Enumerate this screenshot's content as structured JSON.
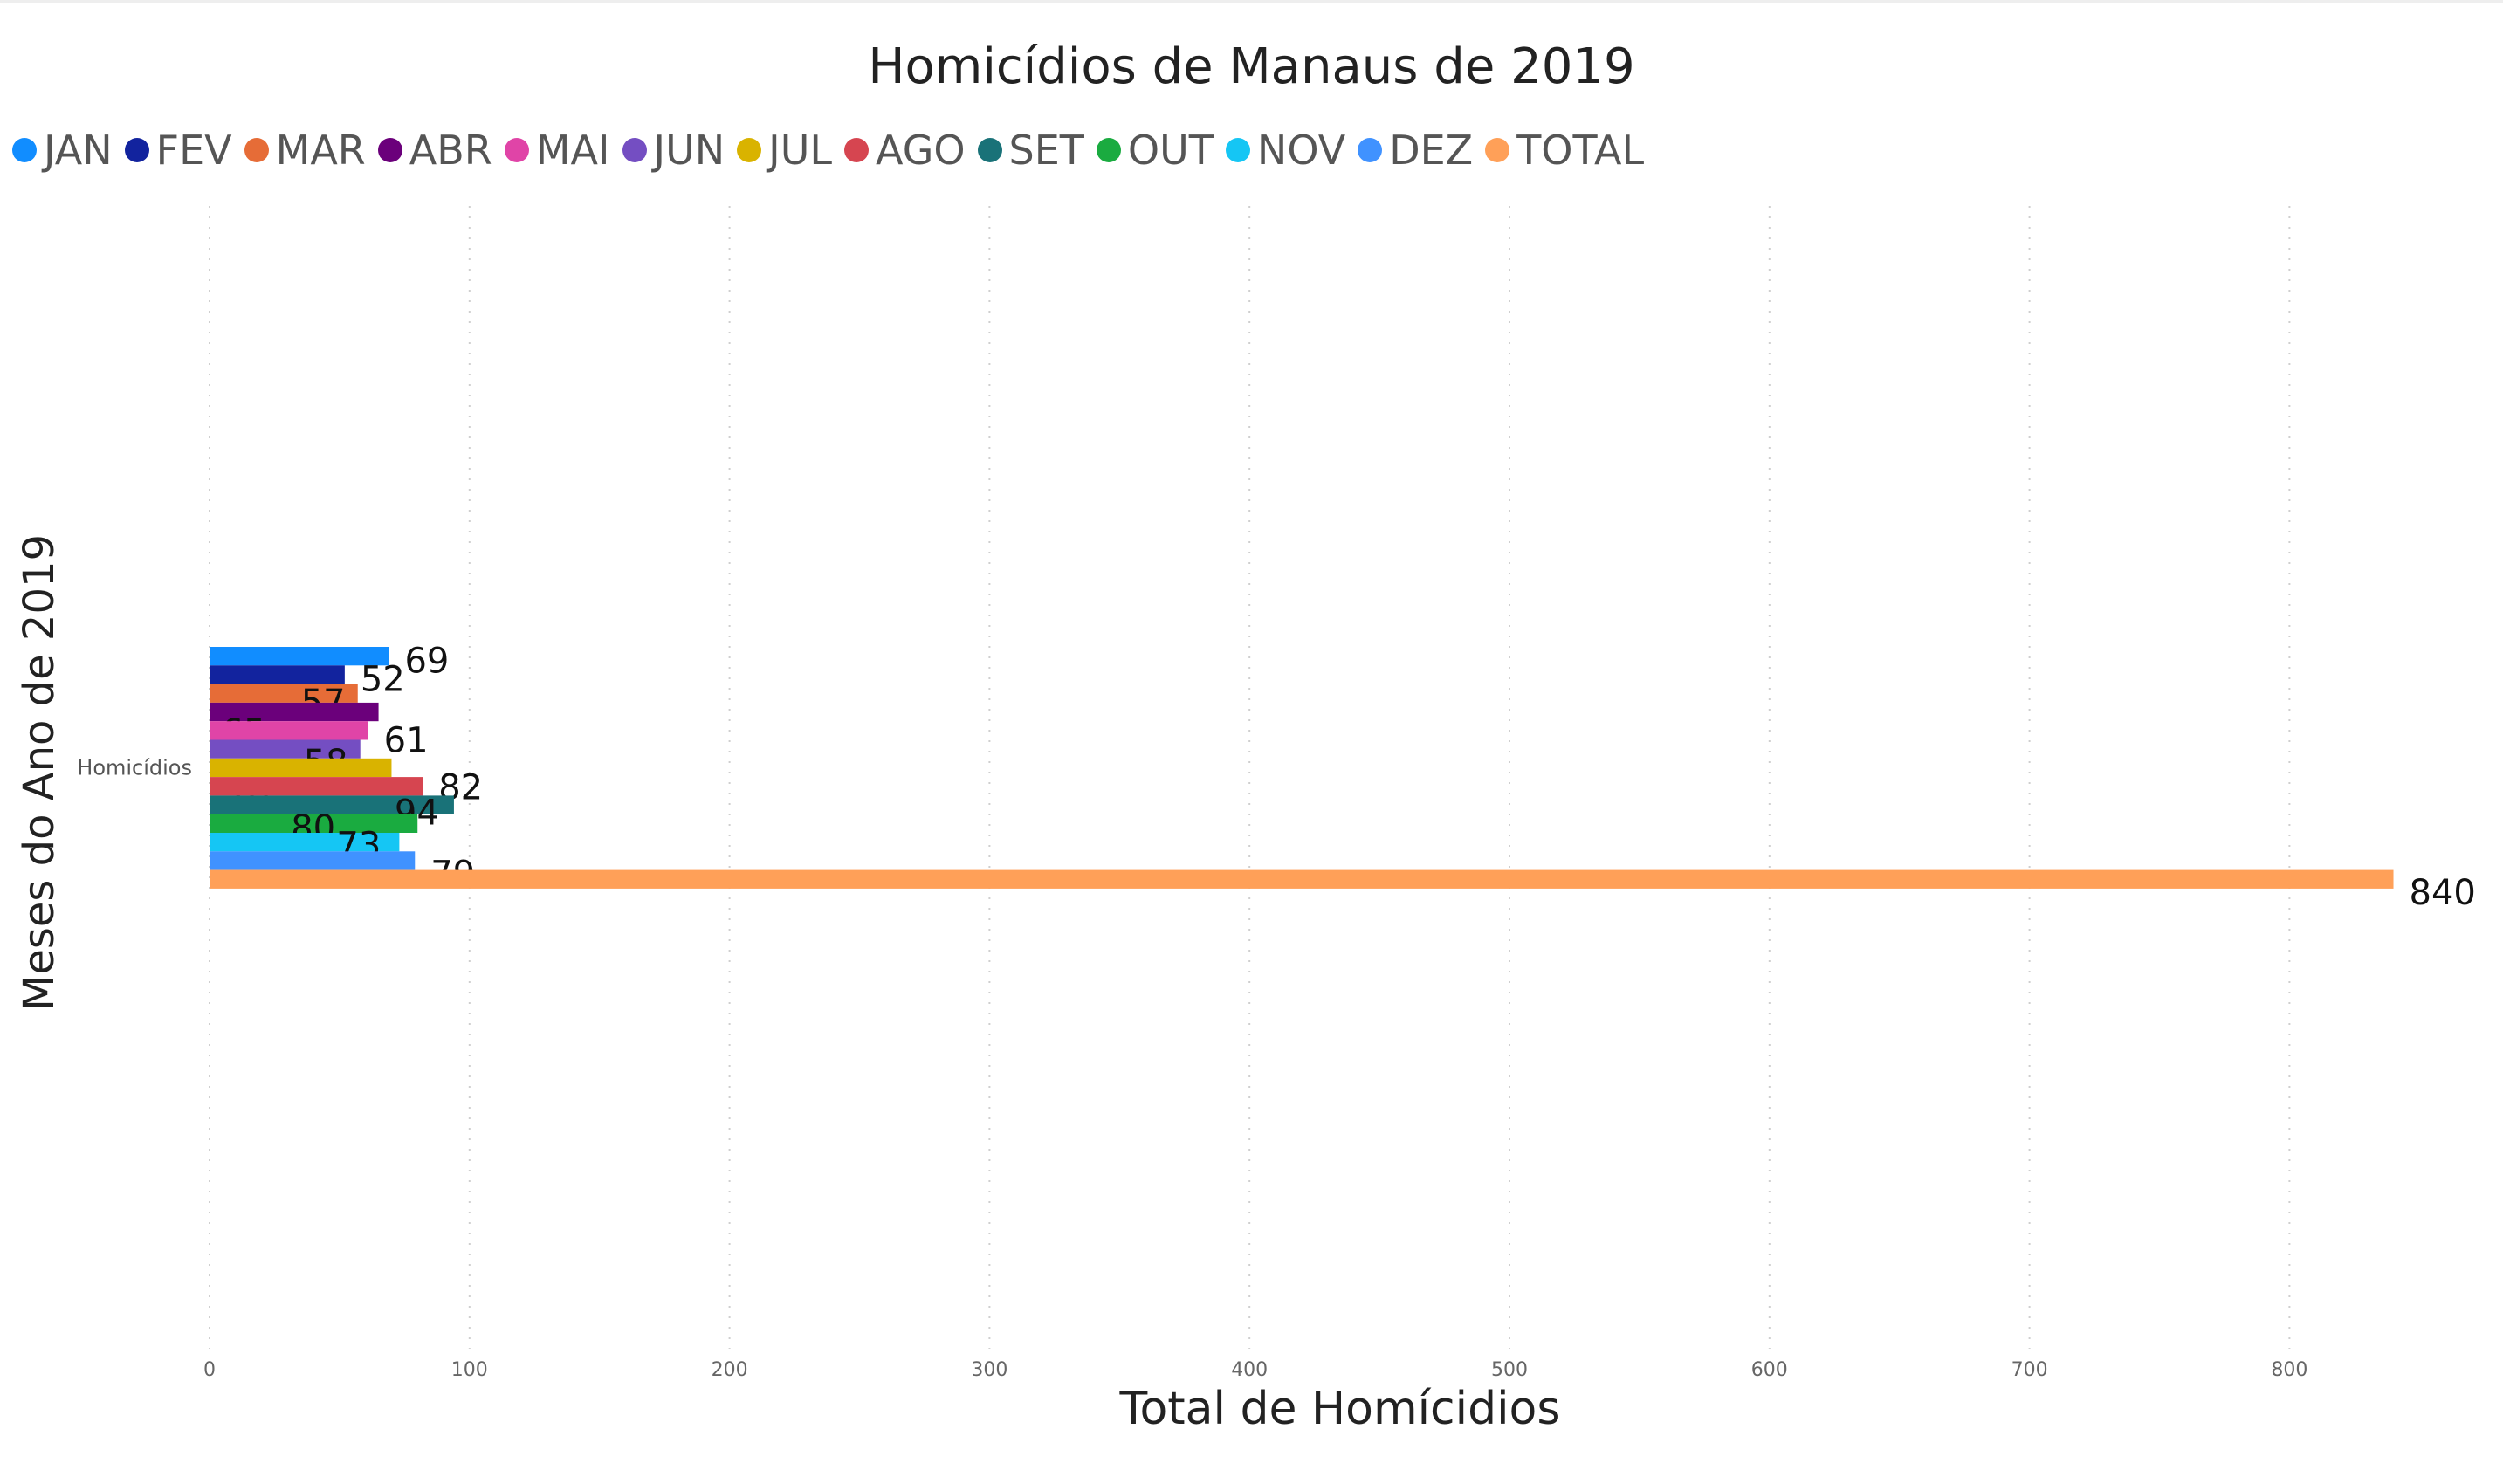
{
  "chart_data": {
    "type": "bar",
    "orientation": "horizontal",
    "title": "Homicídios de Manaus de 2019",
    "xlabel": "Total de Homícidios",
    "ylabel": "Meses do Ano de 2019",
    "categories": [
      "Homicídios"
    ],
    "xlim": [
      0,
      840
    ],
    "xticks": [
      0,
      100,
      200,
      300,
      400,
      500,
      600,
      700,
      800
    ],
    "grid": true,
    "legend_position": "top-left",
    "series": [
      {
        "name": "JAN",
        "values": [
          69
        ],
        "color": "#118DFF"
      },
      {
        "name": "FEV",
        "values": [
          52
        ],
        "color": "#12239E"
      },
      {
        "name": "MAR",
        "values": [
          57
        ],
        "color": "#E66C37"
      },
      {
        "name": "ABR",
        "values": [
          65
        ],
        "color": "#6B007B"
      },
      {
        "name": "MAI",
        "values": [
          61
        ],
        "color": "#E044A7"
      },
      {
        "name": "JUN",
        "values": [
          58
        ],
        "color": "#744EC2"
      },
      {
        "name": "JUL",
        "values": [
          70
        ],
        "color": "#D9B300"
      },
      {
        "name": "AGO",
        "values": [
          82
        ],
        "color": "#D64550"
      },
      {
        "name": "SET",
        "values": [
          94
        ],
        "color": "#197278"
      },
      {
        "name": "OUT",
        "values": [
          80
        ],
        "color": "#1AAB40"
      },
      {
        "name": "NOV",
        "values": [
          73
        ],
        "color": "#15C6F4"
      },
      {
        "name": "DEZ",
        "values": [
          79
        ],
        "color": "#4092FF"
      },
      {
        "name": "TOTAL",
        "values": [
          840
        ],
        "color": "#FFA058"
      }
    ]
  }
}
